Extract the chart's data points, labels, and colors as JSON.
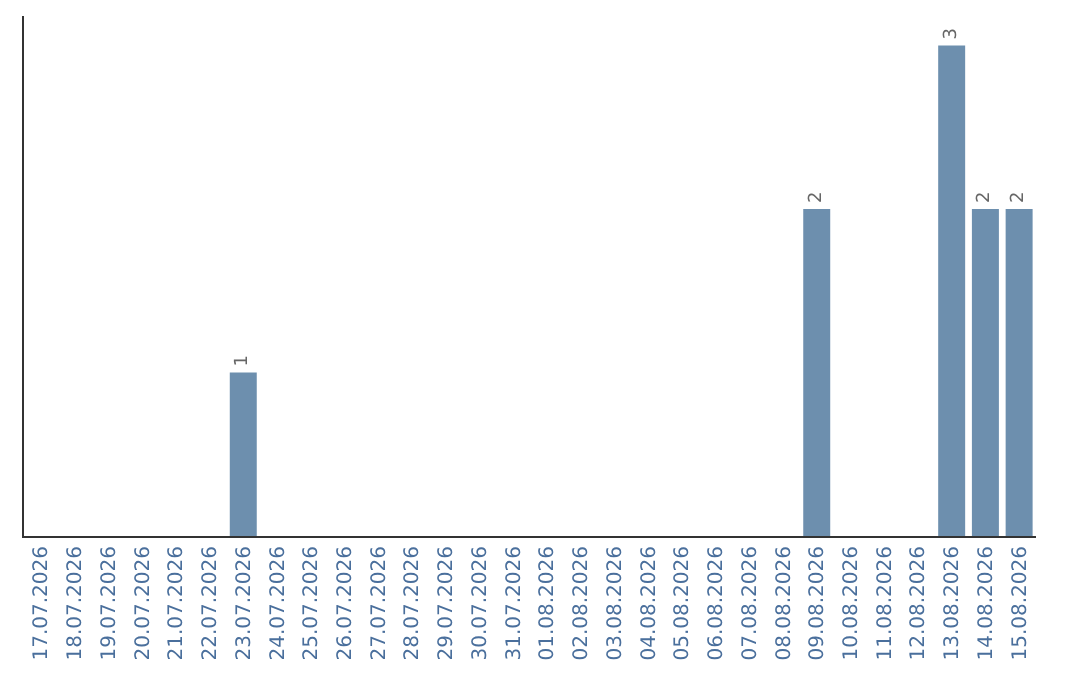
{
  "chart_data": {
    "type": "bar",
    "categories": [
      "17.07.2026",
      "18.07.2026",
      "19.07.2026",
      "20.07.2026",
      "21.07.2026",
      "22.07.2026",
      "23.07.2026",
      "24.07.2026",
      "25.07.2026",
      "26.07.2026",
      "27.07.2026",
      "28.07.2026",
      "29.07.2026",
      "30.07.2026",
      "31.07.2026",
      "01.08.2026",
      "02.08.2026",
      "03.08.2026",
      "04.08.2026",
      "05.08.2026",
      "06.08.2026",
      "07.08.2026",
      "08.08.2026",
      "09.08.2026",
      "10.08.2026",
      "11.08.2026",
      "12.08.2026",
      "13.08.2026",
      "14.08.2026",
      "15.08.2026"
    ],
    "values": [
      0,
      0,
      0,
      0,
      0,
      0,
      1,
      0,
      0,
      0,
      0,
      0,
      0,
      0,
      0,
      0,
      0,
      0,
      0,
      0,
      0,
      0,
      0,
      2,
      0,
      0,
      0,
      3,
      2,
      2
    ],
    "value_labels": [
      null,
      null,
      null,
      null,
      null,
      null,
      "1",
      null,
      null,
      null,
      null,
      null,
      null,
      null,
      null,
      null,
      null,
      null,
      null,
      null,
      null,
      null,
      null,
      "2",
      null,
      null,
      null,
      "3",
      "2",
      "2"
    ],
    "color": "#6d8fae",
    "tick_labels": "x"
  }
}
